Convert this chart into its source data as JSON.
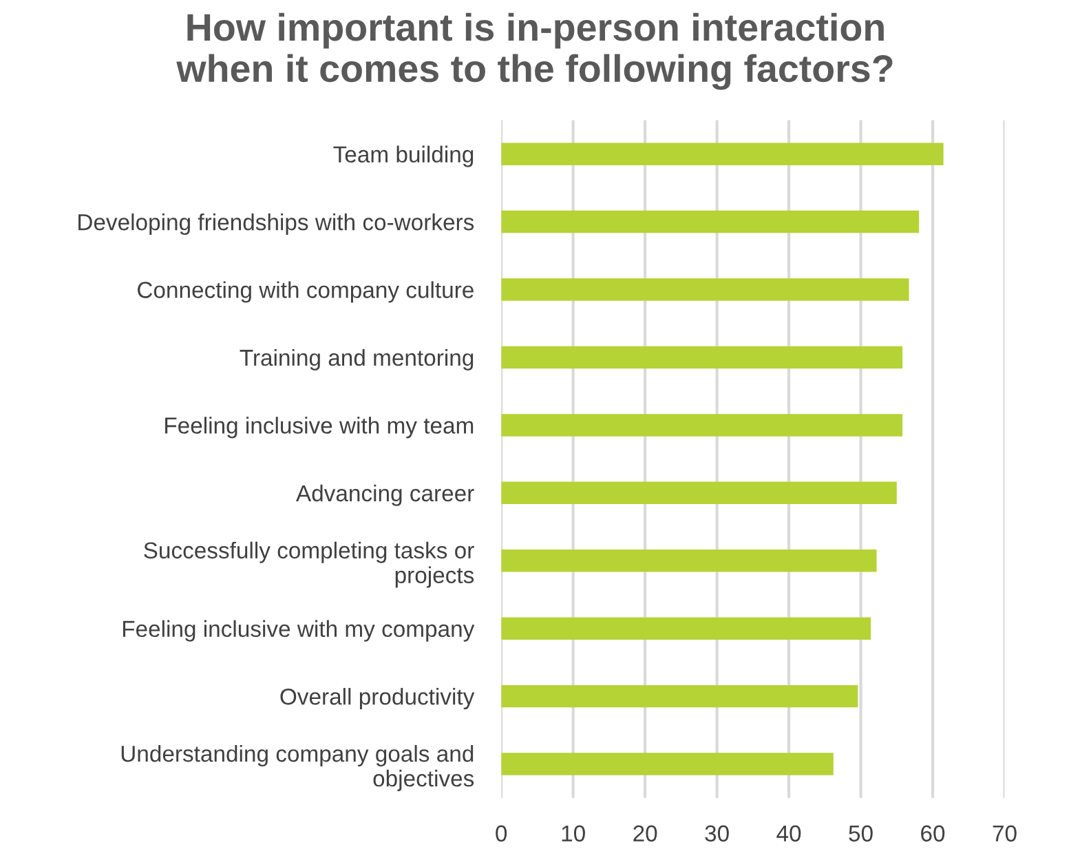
{
  "chart_data": {
    "type": "bar",
    "orientation": "horizontal",
    "title": "How important is in-person interaction\nwhen it comes to the following factors?",
    "categories": [
      "Team building",
      "Developing friendships with co-workers",
      "Connecting with company culture",
      "Training and mentoring",
      "Feeling inclusive with my team",
      "Advancing career",
      "Successfully completing tasks or\nprojects",
      "Feeling inclusive with my company",
      "Overall productivity",
      "Understanding company goals and\nobjectives"
    ],
    "values": [
      61.5,
      58.1,
      56.7,
      55.8,
      55.8,
      55.0,
      52.2,
      51.4,
      49.6,
      46.2
    ],
    "color": "#b5d334",
    "xlim": [
      0,
      70
    ],
    "xticks": [
      0,
      10,
      20,
      30,
      40,
      50,
      60,
      70
    ],
    "grid": "x"
  }
}
